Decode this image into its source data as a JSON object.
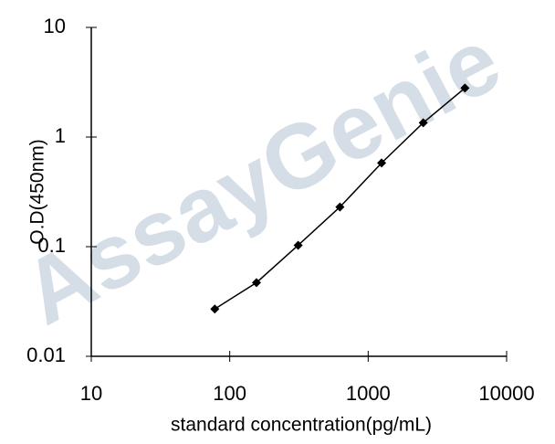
{
  "chart_data": {
    "type": "line",
    "x_label": "standard concentration(pg/mL)",
    "y_label": "O.D(450nm)",
    "watermark": "AssayGenie",
    "x": [
      78,
      156,
      312,
      625,
      1250,
      2500,
      5000
    ],
    "series": [
      {
        "color": "#000000",
        "values": [
          0.027,
          0.047,
          0.103,
          0.23,
          0.58,
          1.35,
          2.8
        ]
      }
    ],
    "xlim": [
      10,
      10000
    ],
    "xticks": [
      10,
      100,
      1000,
      10000
    ],
    "ylim": [
      0.01,
      10
    ],
    "yticks": [
      0.01,
      0.1,
      1,
      10
    ],
    "x_log": true,
    "y_log": true
  }
}
